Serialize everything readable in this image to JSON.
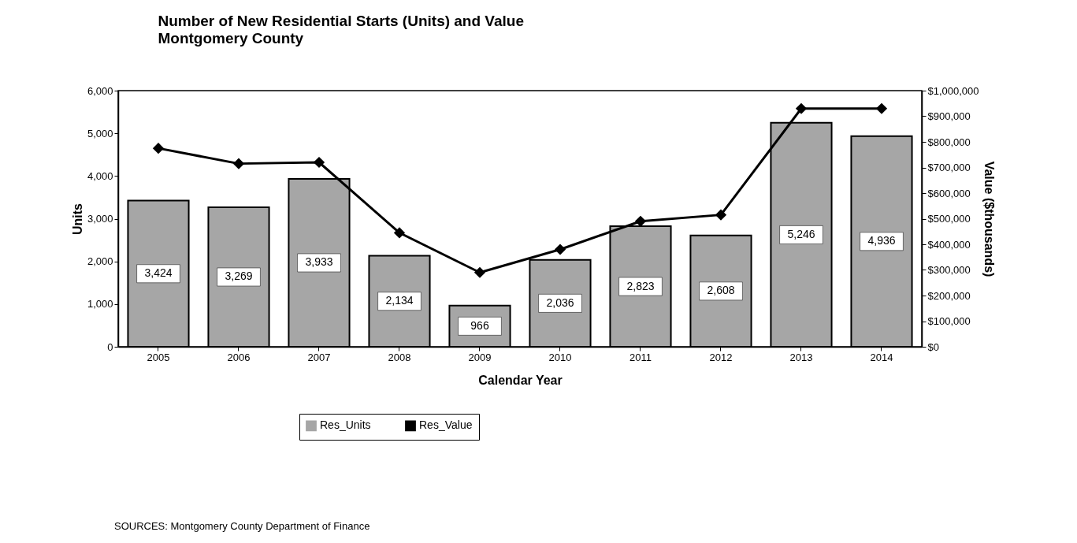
{
  "chart_data": {
    "type": "bar",
    "title": "Number of New Residential Starts (Units) and Value",
    "subtitle": "Montgomery County",
    "xlabel": "Calendar Year",
    "ylabel": "Units",
    "y2label": "Value ($thousands)",
    "categories": [
      "2005",
      "2006",
      "2007",
      "2008",
      "2009",
      "2010",
      "2011",
      "2012",
      "2013",
      "2014"
    ],
    "series": [
      {
        "name": "Res_Units",
        "color": "#a6a6a6",
        "values": [
          3424,
          3269,
          3933,
          2134,
          966,
          2036,
          2823,
          2608,
          5246,
          4936
        ],
        "value_labels": [
          "3,424",
          "3,269",
          "3,933",
          "2,134",
          "966",
          "2,036",
          "2,823",
          "2,608",
          "5,246",
          "4,936"
        ]
      },
      {
        "name": "Res_Value",
        "type": "line",
        "axis": "y2",
        "color": "#000000",
        "values": [
          775000,
          715000,
          720000,
          445000,
          290000,
          380000,
          490000,
          515000,
          930000,
          930000
        ]
      }
    ],
    "ylim": [
      0,
      6000
    ],
    "yticks": [
      {
        "value": 0,
        "label": "0"
      },
      {
        "value": 1000,
        "label": "1,000"
      },
      {
        "value": 2000,
        "label": "2,000"
      },
      {
        "value": 3000,
        "label": "3,000"
      },
      {
        "value": 4000,
        "label": "4,000"
      },
      {
        "value": 5000,
        "label": "5,000"
      },
      {
        "value": 6000,
        "label": "6,000"
      }
    ],
    "y2lim": [
      0,
      1000000
    ],
    "y2ticks": [
      {
        "value": 0,
        "label": "$0"
      },
      {
        "value": 100000,
        "label": "$100,000"
      },
      {
        "value": 200000,
        "label": "$200,000"
      },
      {
        "value": 300000,
        "label": "$300,000"
      },
      {
        "value": 400000,
        "label": "$400,000"
      },
      {
        "value": 500000,
        "label": "$500,000"
      },
      {
        "value": 600000,
        "label": "$600,000"
      },
      {
        "value": 700000,
        "label": "$700,000"
      },
      {
        "value": 800000,
        "label": "$800,000"
      },
      {
        "value": 900000,
        "label": "$900,000"
      },
      {
        "value": 1000000,
        "label": "$1,000,000"
      }
    ],
    "marker": "diamond",
    "legend": "bottom",
    "grid": false,
    "annotations": [
      "SOURCES: Montgomery County Department of Finance"
    ]
  }
}
